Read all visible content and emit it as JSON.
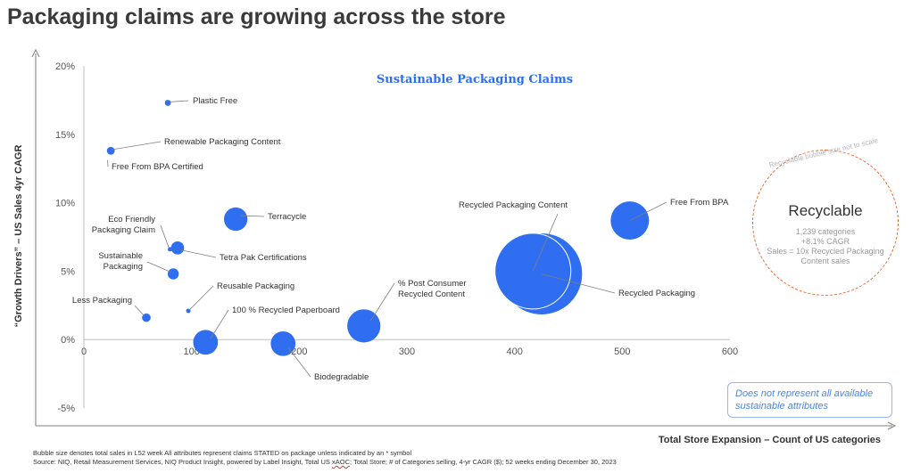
{
  "headline": "Packaging claims are growing across the store",
  "chart_data": {
    "type": "scatter",
    "subtype": "bubble",
    "title": "Sustainable Packaging Claims",
    "xlabel": "Total Store Expansion – Count of US categories",
    "ylabel": "“Growth Drivers” – US Sales 4yr CAGR",
    "xlim": [
      0,
      600
    ],
    "ylim": [
      -5,
      20
    ],
    "x_ticks": [
      "0",
      "100",
      "200",
      "300",
      "400",
      "500",
      "600"
    ],
    "y_ticks": [
      "-5%",
      "0%",
      "5%",
      "10%",
      "15%",
      "20%"
    ],
    "x_tick_values": [
      0,
      100,
      200,
      300,
      400,
      500,
      600
    ],
    "y_tick_values": [
      -5,
      0,
      5,
      10,
      15,
      20
    ],
    "grid": false,
    "bubble_color": "#2f6ef0",
    "points": [
      {
        "label": "Plastic Free",
        "x": 78,
        "y": 17.3,
        "size": 0.3
      },
      {
        "label": "Renewable Packaging Content",
        "x": 25,
        "y": 13.8,
        "size": 0.5
      },
      {
        "label": "Free From BPA Certified",
        "x": 22,
        "y": 13.1,
        "size": 0
      },
      {
        "label": "Terracycle",
        "x": 141,
        "y": 8.8,
        "size": 4.5
      },
      {
        "label": "Eco Friendly Packaging Claim",
        "x": 80,
        "y": 6.6,
        "size": 0.05
      },
      {
        "label": "Tetra Pak Certifications",
        "x": 87,
        "y": 6.7,
        "size": 1.4
      },
      {
        "label": "Sustainable Packaging",
        "x": 83,
        "y": 4.8,
        "size": 1.0
      },
      {
        "label": "Reusable Packaging",
        "x": 97,
        "y": 2.1,
        "size": 0.15
      },
      {
        "label": "Less Packaging",
        "x": 58,
        "y": 1.6,
        "size": 0.6
      },
      {
        "label": "100 % Recycled Paperboard",
        "x": 113,
        "y": -0.2,
        "size": 5.0
      },
      {
        "label": "Biodegradable",
        "x": 185,
        "y": -0.3,
        "size": 5.0
      },
      {
        "label": "% Post Consumer Recycled Content",
        "x": 260,
        "y": 1.0,
        "size": 9.0
      },
      {
        "label": "Recycled Packaging Content",
        "x": 417,
        "y": 5.0,
        "size": 47
      },
      {
        "label": "Recycled Packaging",
        "x": 425,
        "y": 4.8,
        "size": 55
      },
      {
        "label": "Free From BPA",
        "x": 507,
        "y": 8.7,
        "size": 12
      }
    ]
  },
  "recyclable": {
    "note": "Recyclable bubble size not to scale",
    "title": "Recyclable",
    "lines": [
      "1,239 categories",
      "+8.1% CAGR",
      "Sales = 10x Recycled Packaging Content sales"
    ]
  },
  "disclaimer": "Does not represent all available sustainable attributes",
  "footnote": {
    "line1": "Bubble size denotes total sales in L52 week All attributes represent claims STATED on package unless indicated by an * symbol",
    "line2a": "Source: NIQ, Retail Measurement Services, NIQ Product Insight, powered by Label Insight, Total US ",
    "line2b": "xAOC",
    "line2c": "; Total Store; # of Categories selling, 4-yr CAGR ($); 52 weeks ending December 30, 2023"
  }
}
